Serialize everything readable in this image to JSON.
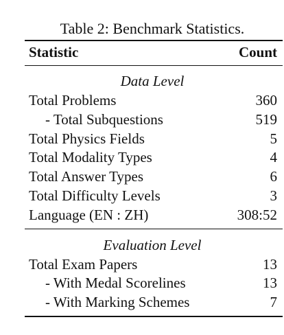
{
  "table": {
    "caption": "Table 2: Benchmark Statistics.",
    "header": [
      "Statistic",
      "Count"
    ],
    "sections": [
      {
        "title": "Data Level",
        "rows": [
          [
            "Total Problems",
            360
          ],
          [
            "- Total Subquestions",
            519
          ],
          [
            "Total Physics Fields",
            5
          ],
          [
            "Total Modality Types",
            4
          ],
          [
            "Total Answer Types",
            6
          ],
          [
            "Total Difficulty Levels",
            3
          ],
          [
            "Language (EN : ZH)",
            "308:52"
          ]
        ]
      },
      {
        "title": "Evaluation Level",
        "rows": [
          [
            "Total Exam Papers",
            13
          ],
          [
            "- With Medal Scorelines",
            13
          ],
          [
            "- With Marking Schemes",
            7
          ]
        ]
      }
    ]
  }
}
